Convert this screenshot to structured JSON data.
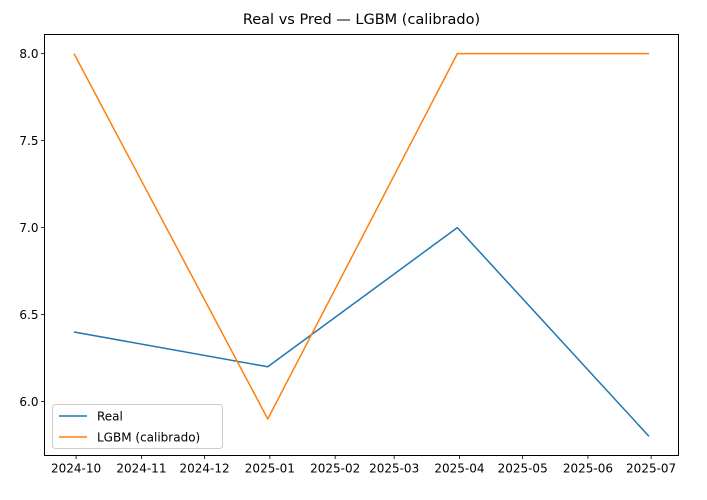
{
  "chart_data": {
    "type": "line",
    "title": "Real vs Pred — LGBM (calibrado)",
    "xlabel": "",
    "ylabel": "",
    "x": [
      "2024-09-30",
      "2024-12-31",
      "2025-03-31",
      "2025-06-30"
    ],
    "series": [
      {
        "name": "Real",
        "color": "#1f77b4",
        "values": [
          6.4,
          6.2,
          7.0,
          5.8
        ]
      },
      {
        "name": "LGBM (calibrado)",
        "color": "#ff7f0e",
        "values": [
          8.0,
          5.9,
          8.0,
          8.0
        ]
      }
    ],
    "xticks": [
      "2024-10",
      "2024-11",
      "2024-12",
      "2025-01",
      "2025-02",
      "2025-03",
      "2025-04",
      "2025-05",
      "2025-06",
      "2025-07"
    ],
    "xlim": [
      "2024-09-16",
      "2025-07-14"
    ],
    "yticks": [
      "6.0",
      "6.5",
      "7.0",
      "7.5",
      "8.0"
    ],
    "ylim": [
      5.69,
      8.11
    ],
    "grid": false,
    "legend": "lower-left"
  }
}
